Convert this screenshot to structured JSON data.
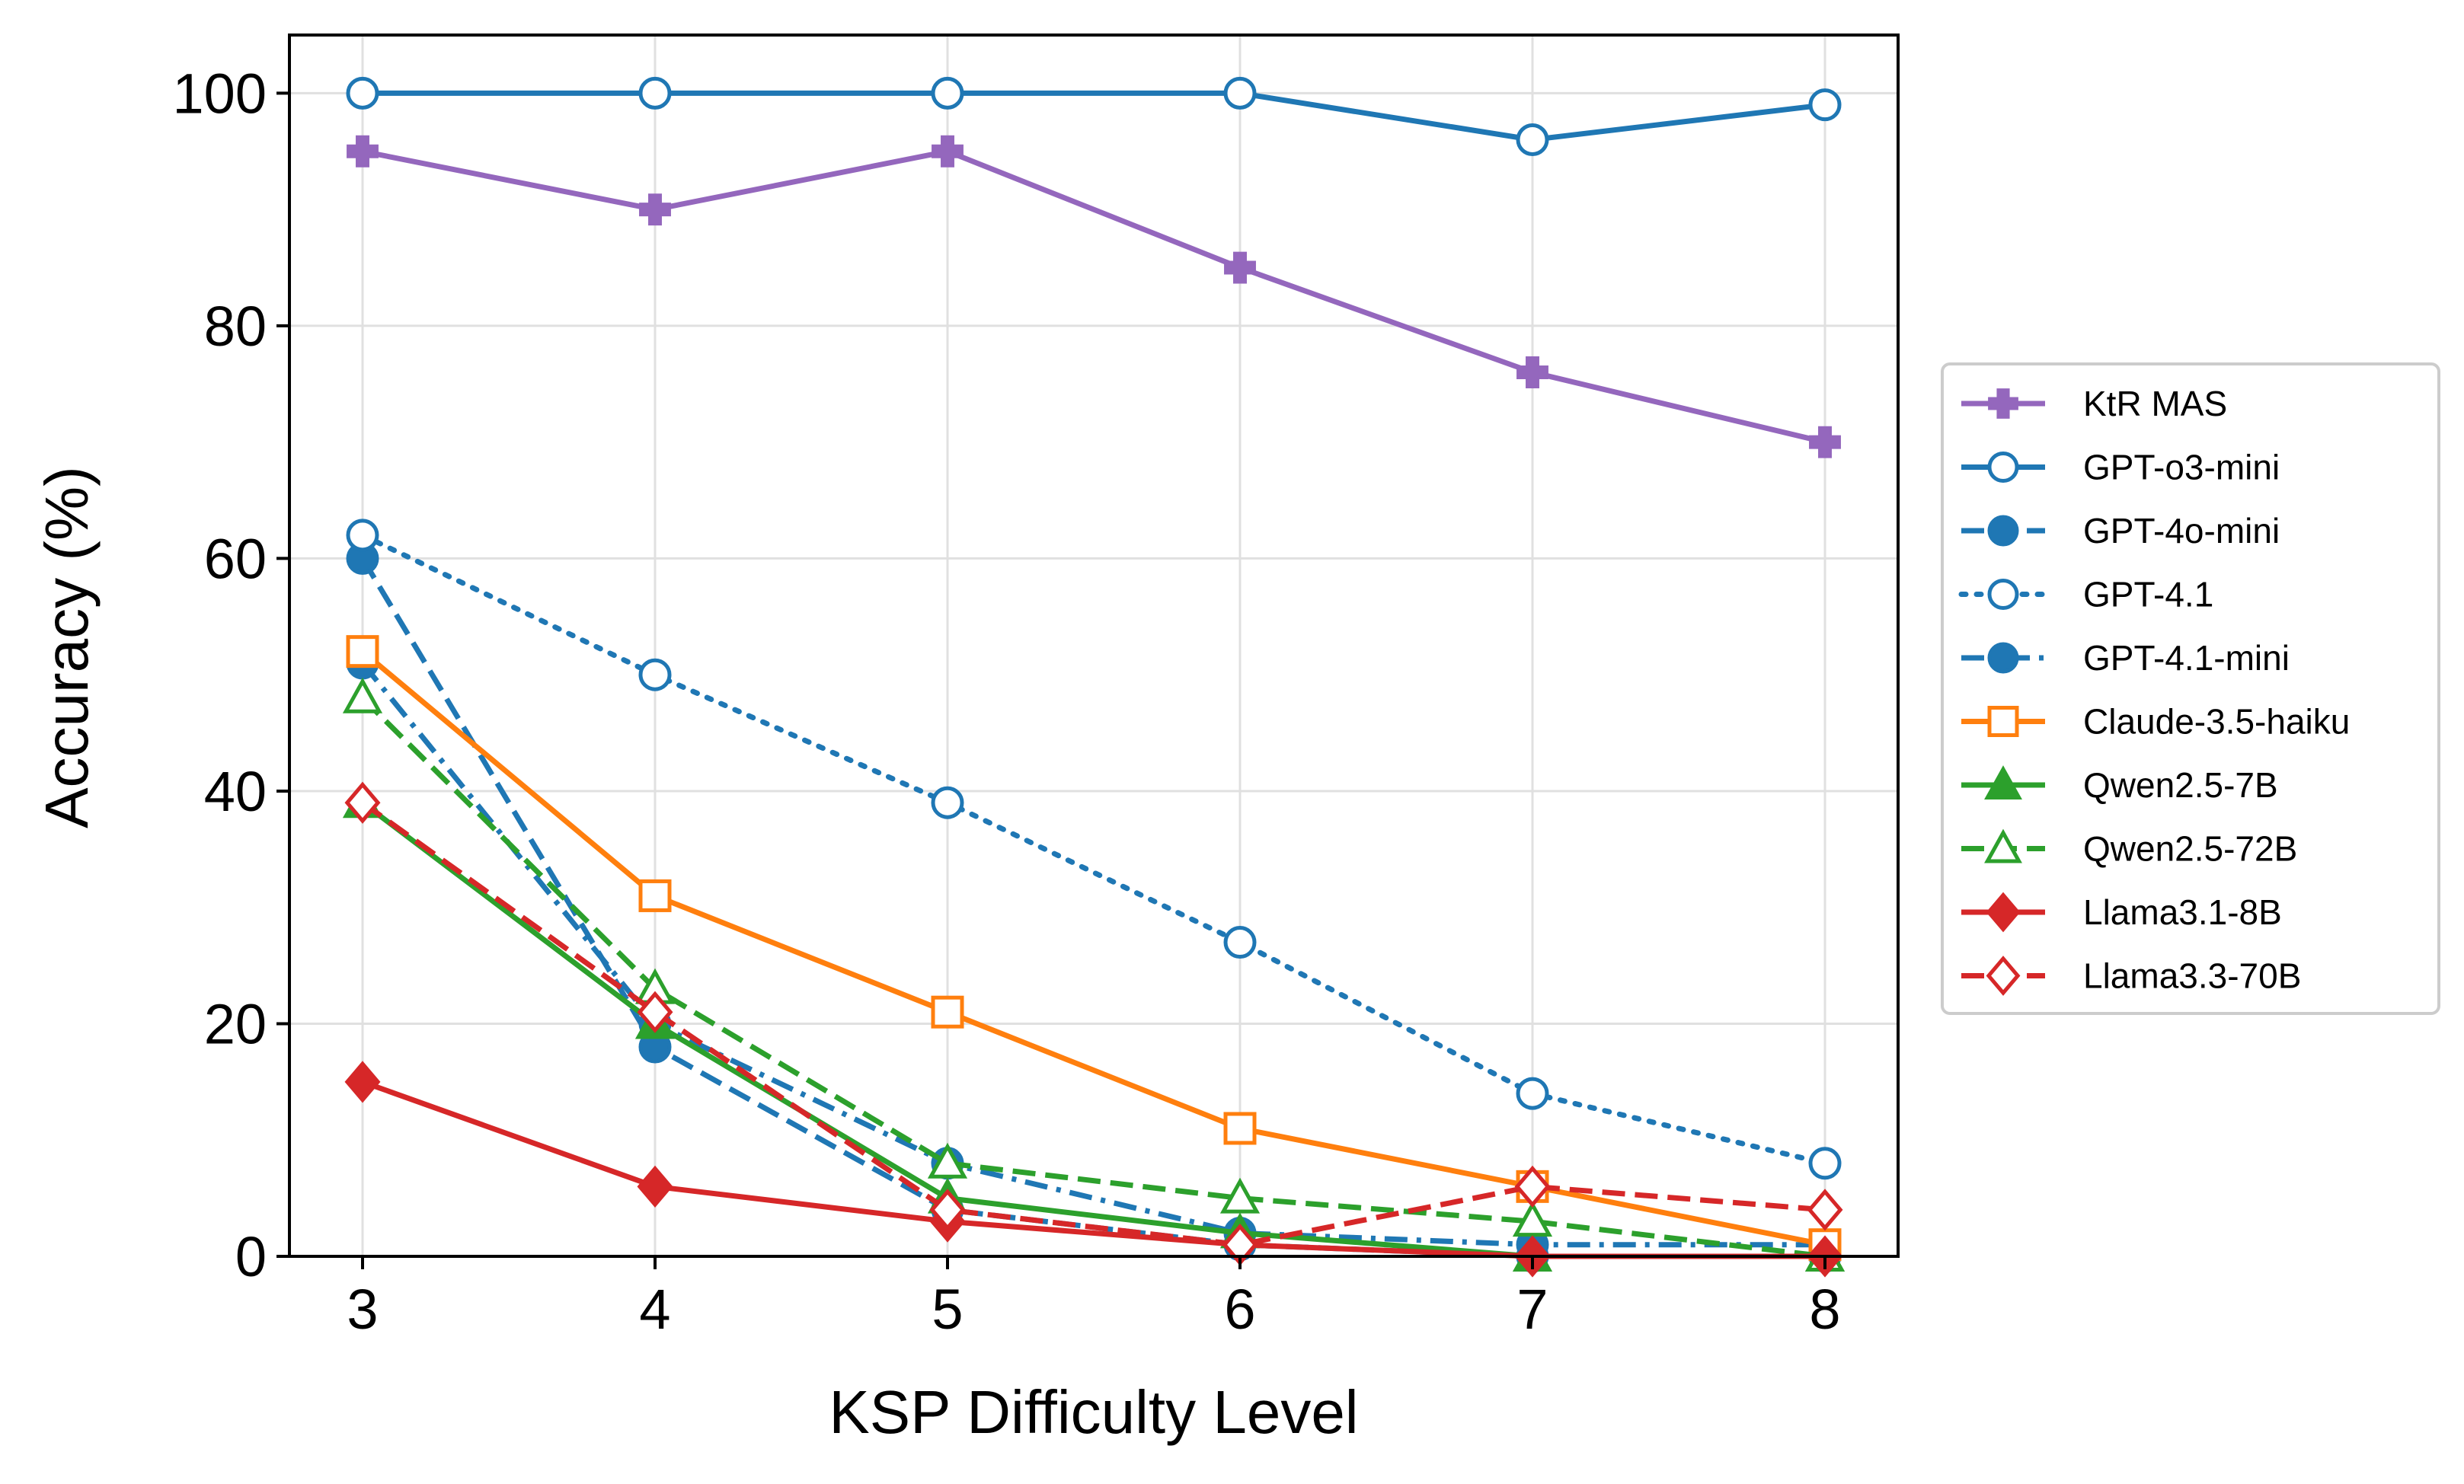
{
  "chart_data": {
    "type": "line",
    "title": "",
    "xlabel": "KSP Difficulty Level",
    "ylabel": "Accuracy (%)",
    "x": [
      3,
      4,
      5,
      6,
      7,
      8
    ],
    "x_ticks": [
      "3",
      "4",
      "5",
      "6",
      "7",
      "8"
    ],
    "y_ticks": [
      "0",
      "20",
      "40",
      "60",
      "80",
      "100"
    ],
    "xlim": [
      2.75,
      8.25
    ],
    "ylim": [
      0,
      105
    ],
    "grid": true,
    "legend_position": "center-right, outside plot",
    "series": [
      {
        "name": "KtR MAS",
        "values": [
          95,
          90,
          95,
          85,
          76,
          70
        ],
        "color": "#9467bd",
        "linestyle": "solid",
        "marker": "plus",
        "filled": true
      },
      {
        "name": "GPT-o3-mini",
        "values": [
          100,
          100,
          100,
          100,
          96,
          99
        ],
        "color": "#1f77b4",
        "linestyle": "solid",
        "marker": "circle",
        "filled": false
      },
      {
        "name": "GPT-4o-mini",
        "values": [
          60,
          18,
          4,
          1,
          0,
          0
        ],
        "color": "#1f77b4",
        "linestyle": "dashed",
        "marker": "circle",
        "filled": true
      },
      {
        "name": "GPT-4.1",
        "values": [
          62,
          50,
          39,
          27,
          14,
          8
        ],
        "color": "#1f77b4",
        "linestyle": "dotted",
        "marker": "circle",
        "filled": false
      },
      {
        "name": "GPT-4.1-mini",
        "values": [
          51,
          20,
          8,
          2,
          1,
          1
        ],
        "color": "#1f77b4",
        "linestyle": "dashdot",
        "marker": "circle",
        "filled": true
      },
      {
        "name": "Claude-3.5-haiku",
        "values": [
          52,
          31,
          21,
          11,
          6,
          1
        ],
        "color": "#ff7f0e",
        "linestyle": "solid",
        "marker": "square",
        "filled": false
      },
      {
        "name": "Qwen2.5-7B",
        "values": [
          39,
          20,
          5,
          2,
          0,
          0
        ],
        "color": "#2ca02c",
        "linestyle": "solid",
        "marker": "triangle",
        "filled": true
      },
      {
        "name": "Qwen2.5-72B",
        "values": [
          48,
          23,
          8,
          5,
          3,
          0
        ],
        "color": "#2ca02c",
        "linestyle": "dashed",
        "marker": "triangle",
        "filled": false
      },
      {
        "name": "Llama3.1-8B",
        "values": [
          15,
          6,
          3,
          1,
          0,
          0
        ],
        "color": "#d62728",
        "linestyle": "solid",
        "marker": "diamond",
        "filled": true
      },
      {
        "name": "Llama3.3-70B",
        "values": [
          39,
          21,
          4,
          1,
          6,
          4
        ],
        "color": "#d62728",
        "linestyle": "dashed",
        "marker": "diamond",
        "filled": false
      }
    ]
  }
}
